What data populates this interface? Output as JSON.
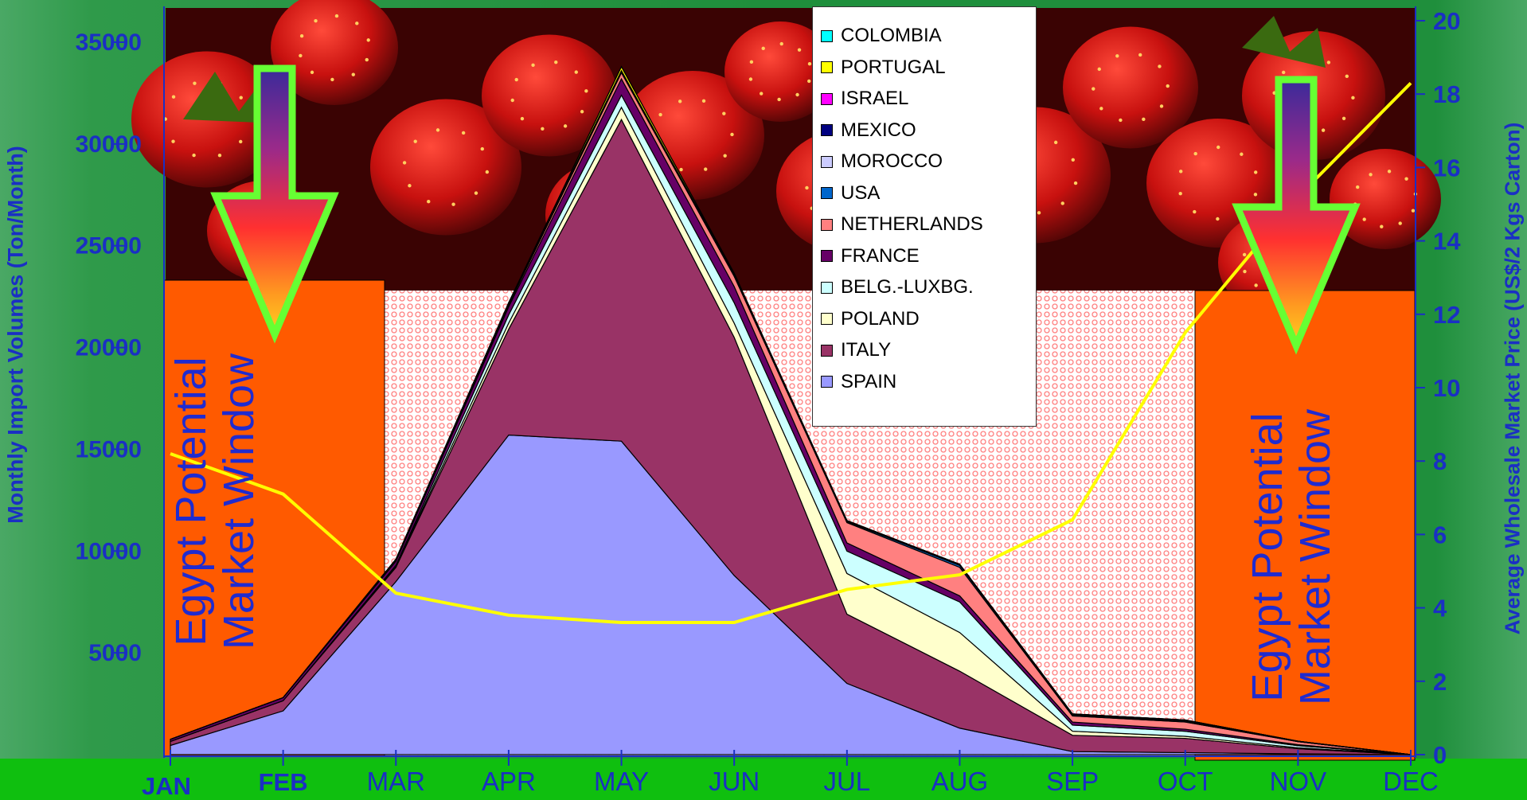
{
  "chart_data": {
    "type": "area",
    "categories": [
      "JAN",
      "FEB",
      "MAR",
      "APR",
      "MAY",
      "JUN",
      "JUL",
      "AUG",
      "SEP",
      "OCT",
      "NOV",
      "DEC"
    ],
    "ylabel_left": "Monthly Import Volumes (Ton/Month)",
    "ylabel_right": "Average Wholesale Market Price (US$/2 Kgs Carton)",
    "ylim_left": [
      0,
      35000
    ],
    "ylim_right": [
      0,
      20
    ],
    "left_ticks": [
      "5000",
      "10000",
      "15000",
      "20000",
      "25000",
      "30000",
      "35000"
    ],
    "right_ticks": [
      "0",
      "2",
      "4",
      "6",
      "8",
      "10",
      "12",
      "14",
      "16",
      "18",
      "20"
    ],
    "grid": false,
    "legend_position": "top-center",
    "series_stacked": [
      {
        "name": "SPAIN",
        "color": "#9999ff",
        "values": [
          450,
          2150,
          8500,
          15700,
          15400,
          8800,
          3500,
          1300,
          150,
          100,
          40,
          0
        ]
      },
      {
        "name": "ITALY",
        "color": "#993366",
        "values": [
          200,
          500,
          700,
          5200,
          15800,
          11700,
          3400,
          2800,
          800,
          700,
          250,
          0
        ]
      },
      {
        "name": "POLAND",
        "color": "#ffffcc",
        "values": [
          0,
          0,
          50,
          300,
          600,
          700,
          2000,
          1900,
          200,
          100,
          50,
          0
        ]
      },
      {
        "name": "BELG.-LUXBG.",
        "color": "#ccffff",
        "values": [
          0,
          0,
          50,
          400,
          600,
          1000,
          1100,
          1500,
          300,
          250,
          100,
          0
        ]
      },
      {
        "name": "FRANCE",
        "color": "#660066",
        "values": [
          100,
          150,
          200,
          400,
          800,
          800,
          400,
          300,
          150,
          100,
          50,
          0
        ]
      },
      {
        "name": "NETHERLANDS",
        "color": "#ff8080",
        "values": [
          0,
          0,
          50,
          100,
          300,
          500,
          1000,
          1400,
          300,
          350,
          150,
          0
        ]
      },
      {
        "name": "USA",
        "color": "#0066cc",
        "values": [
          0,
          0,
          0,
          50,
          50,
          50,
          50,
          100,
          50,
          50,
          0,
          0
        ]
      },
      {
        "name": "MOROCCO",
        "color": "#ccccff",
        "values": [
          0,
          0,
          0,
          0,
          0,
          0,
          0,
          0,
          0,
          0,
          0,
          0
        ]
      },
      {
        "name": "MEXICO",
        "color": "#000080",
        "values": [
          0,
          0,
          50,
          50,
          50,
          50,
          50,
          50,
          50,
          50,
          20,
          0
        ]
      },
      {
        "name": "ISRAEL",
        "color": "#ff00ff",
        "values": [
          0,
          0,
          0,
          0,
          0,
          0,
          0,
          0,
          0,
          0,
          0,
          0
        ]
      },
      {
        "name": "PORTUGAL",
        "color": "#ffff00",
        "values": [
          0,
          0,
          0,
          0,
          200,
          50,
          0,
          0,
          0,
          0,
          0,
          0
        ]
      },
      {
        "name": "COLOMBIA",
        "color": "#00ffff",
        "values": [
          0,
          0,
          0,
          0,
          0,
          0,
          0,
          0,
          0,
          0,
          0,
          0
        ]
      }
    ],
    "legend_order": [
      "COLOMBIA",
      "PORTUGAL",
      "ISRAEL",
      "MEXICO",
      "MOROCCO",
      "USA",
      "NETHERLANDS",
      "FRANCE",
      "BELG.-LUXBG.",
      "POLAND",
      "ITALY",
      "SPAIN"
    ],
    "price_line": {
      "color": "#ffff00",
      "values": [
        8.2,
        7.1,
        4.4,
        3.8,
        3.6,
        3.6,
        4.5,
        4.9,
        6.4,
        11.5,
        15.2,
        18.3
      ]
    },
    "annotations": [
      "Egypt Potential Market Window",
      "Egypt Potential Market Window"
    ],
    "highlighted_months": [
      "JAN",
      "FEB"
    ]
  },
  "colors": {
    "window_fill": "#ff5a00",
    "arrow_border": "#66ff33",
    "axis_text": "#1a2fc4",
    "bottom_band": "#0fbf0f"
  }
}
